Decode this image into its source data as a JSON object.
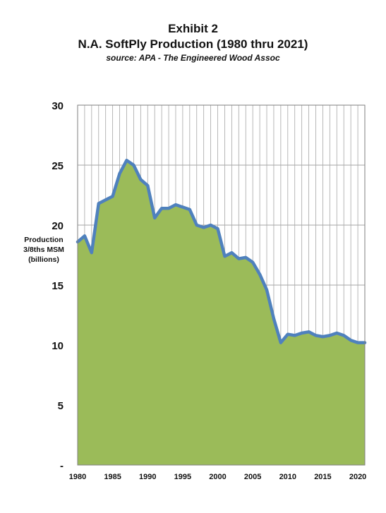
{
  "chart_data": {
    "type": "area",
    "title_lines": [
      "Exhibit 2",
      "N.A. SoftPly Production (1980 thru 2021)"
    ],
    "subtitle": "source: APA - The Engineered Wood Assoc",
    "ylabel_lines": [
      "Production",
      "3/8ths MSM",
      "(billions)"
    ],
    "xlabel": "",
    "ylim": [
      0,
      30
    ],
    "xlim": [
      1980,
      2021
    ],
    "y_ticks": [
      "-",
      "5",
      "10",
      "15",
      "20",
      "25",
      "30"
    ],
    "y_tick_values": [
      0,
      5,
      10,
      15,
      20,
      25,
      30
    ],
    "x_ticks": [
      "1980",
      "1985",
      "1990",
      "1995",
      "2000",
      "2005",
      "2010",
      "2015",
      "2020"
    ],
    "x_tick_values": [
      1980,
      1985,
      1990,
      1995,
      2000,
      2005,
      2010,
      2015,
      2020
    ],
    "grid": true,
    "x": [
      1980,
      1981,
      1982,
      1983,
      1984,
      1985,
      1986,
      1987,
      1988,
      1989,
      1990,
      1991,
      1992,
      1993,
      1994,
      1995,
      1996,
      1997,
      1998,
      1999,
      2000,
      2001,
      2002,
      2003,
      2004,
      2005,
      2006,
      2007,
      2008,
      2009,
      2010,
      2011,
      2012,
      2013,
      2014,
      2015,
      2016,
      2017,
      2018,
      2019,
      2020,
      2021
    ],
    "values": [
      18.6,
      19.1,
      17.7,
      21.8,
      22.1,
      22.4,
      24.3,
      25.4,
      25.0,
      23.8,
      23.3,
      20.6,
      21.4,
      21.4,
      21.7,
      21.5,
      21.3,
      20.0,
      19.8,
      20.0,
      19.7,
      17.4,
      17.7,
      17.2,
      17.3,
      16.9,
      15.9,
      14.6,
      12.2,
      10.2,
      10.9,
      10.8,
      11.0,
      11.1,
      10.8,
      10.7,
      10.8,
      11.0,
      10.8,
      10.4,
      10.2,
      10.2
    ],
    "colors": {
      "fill": "#9bbb59",
      "line": "#4f81bd",
      "grid": "#a6a6a6"
    }
  }
}
